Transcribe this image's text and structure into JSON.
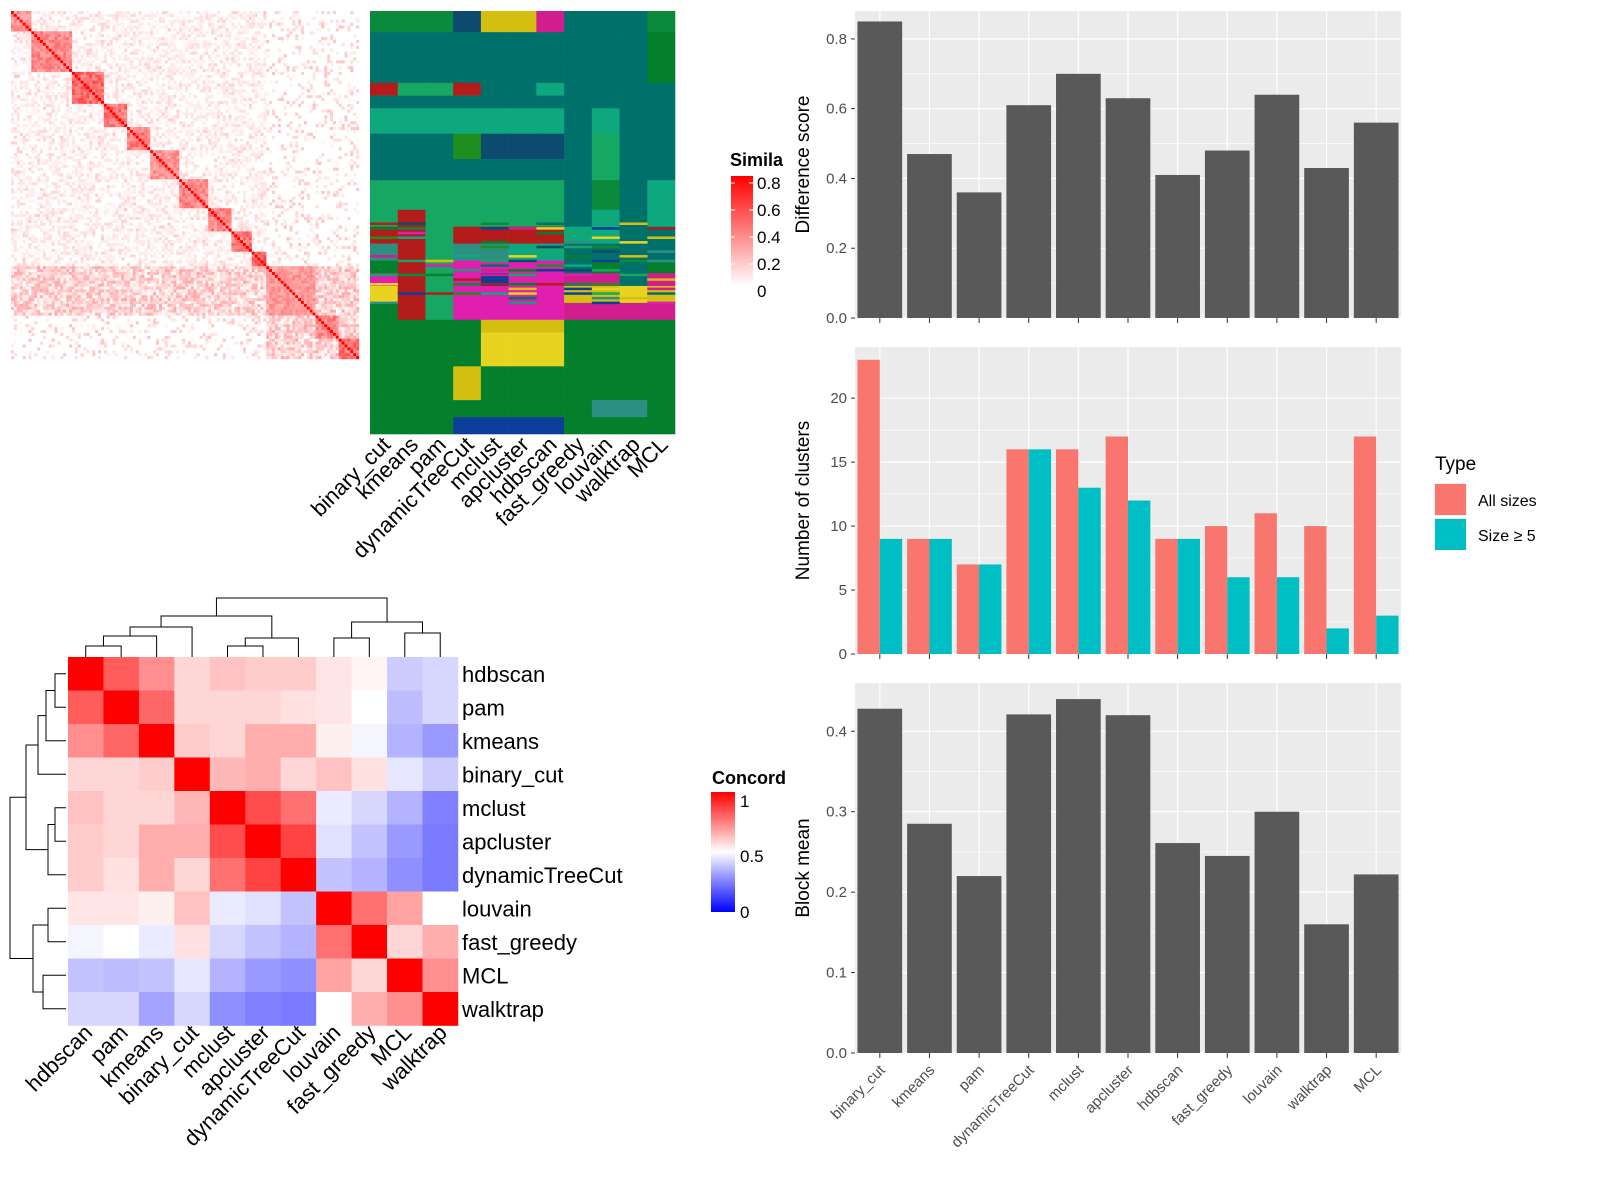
{
  "chart_data": [
    {
      "type": "heatmap",
      "id": "similarity",
      "legend_title": "Simila",
      "legend_ticks": [
        "0.8",
        "0.6",
        "0.4",
        "0.2",
        "0"
      ],
      "color_low": "#ffffff",
      "color_high": "#ff0000",
      "blocks": [
        {
          "start": 0.0,
          "end": 0.055,
          "v": 0.55
        },
        {
          "start": 0.055,
          "end": 0.17,
          "v": 0.6
        },
        {
          "start": 0.17,
          "end": 0.26,
          "v": 0.75
        },
        {
          "start": 0.26,
          "end": 0.33,
          "v": 0.7
        },
        {
          "start": 0.33,
          "end": 0.4,
          "v": 0.65
        },
        {
          "start": 0.4,
          "end": 0.48,
          "v": 0.55
        },
        {
          "start": 0.48,
          "end": 0.56,
          "v": 0.6
        },
        {
          "start": 0.56,
          "end": 0.63,
          "v": 0.6
        },
        {
          "start": 0.63,
          "end": 0.69,
          "v": 0.7
        },
        {
          "start": 0.69,
          "end": 0.73,
          "v": 0.8
        },
        {
          "start": 0.73,
          "end": 0.87,
          "v": 0.5
        },
        {
          "start": 0.87,
          "end": 0.94,
          "v": 0.6
        },
        {
          "start": 0.94,
          "end": 1.0,
          "v": 0.7
        }
      ]
    },
    {
      "type": "heatmap",
      "id": "cluster-assignments",
      "columns": [
        "binary_cut",
        "kmeans",
        "pam",
        "dynamicTreeCut",
        "mclust",
        "apcluster",
        "hdbscan",
        "fast_greedy",
        "louvain",
        "walktrap",
        "MCL"
      ],
      "palette": [
        "#00706A",
        "#0EA87E",
        "#16A862",
        "#0A8A3A",
        "#047F2C",
        "#1E8F1E",
        "#D4BF10",
        "#E8D320",
        "#D11D8E",
        "#E01EB0",
        "#B41C1C",
        "#0C4A6E",
        "#0C3F9A",
        "#2C8F82"
      ]
    },
    {
      "type": "heatmap",
      "id": "concordance",
      "legend_title": "Concord",
      "legend_ticks": [
        "1",
        "0.5",
        "0"
      ],
      "color_low": "#0000ff",
      "color_mid": "#ffffff",
      "color_high": "#ff0000",
      "rows": [
        "hdbscan",
        "pam",
        "kmeans",
        "binary_cut",
        "mclust",
        "apcluster",
        "dynamicTreeCut",
        "louvain",
        "fast_greedy",
        "MCL",
        "walktrap"
      ],
      "columns": [
        "hdbscan",
        "pam",
        "kmeans",
        "binary_cut",
        "mclust",
        "apcluster",
        "dynamicTreeCut",
        "louvain",
        "fast_greedy",
        "MCL",
        "walktrap"
      ],
      "values": [
        [
          1.0,
          0.82,
          0.72,
          0.58,
          0.62,
          0.6,
          0.6,
          0.55,
          0.52,
          0.4,
          0.42
        ],
        [
          0.82,
          1.0,
          0.8,
          0.58,
          0.58,
          0.58,
          0.56,
          0.55,
          0.5,
          0.37,
          0.42
        ],
        [
          0.72,
          0.8,
          1.0,
          0.6,
          0.58,
          0.66,
          0.66,
          0.53,
          0.48,
          0.35,
          0.3
        ],
        [
          0.58,
          0.58,
          0.6,
          1.0,
          0.64,
          0.66,
          0.58,
          0.62,
          0.56,
          0.45,
          0.4
        ],
        [
          0.62,
          0.58,
          0.58,
          0.64,
          1.0,
          0.85,
          0.78,
          0.46,
          0.42,
          0.35,
          0.25
        ],
        [
          0.6,
          0.58,
          0.66,
          0.66,
          0.85,
          1.0,
          0.87,
          0.44,
          0.38,
          0.3,
          0.24
        ],
        [
          0.6,
          0.56,
          0.66,
          0.58,
          0.78,
          0.87,
          1.0,
          0.38,
          0.35,
          0.28,
          0.24
        ],
        [
          0.55,
          0.55,
          0.53,
          0.62,
          0.46,
          0.44,
          0.38,
          1.0,
          0.78,
          0.68,
          0.5
        ],
        [
          0.48,
          0.5,
          0.46,
          0.56,
          0.42,
          0.38,
          0.35,
          0.78,
          1.0,
          0.58,
          0.66
        ],
        [
          0.38,
          0.37,
          0.38,
          0.45,
          0.35,
          0.3,
          0.28,
          0.68,
          0.58,
          1.0,
          0.72
        ],
        [
          0.42,
          0.42,
          0.32,
          0.42,
          0.28,
          0.25,
          0.24,
          0.5,
          0.66,
          0.72,
          1.0
        ]
      ],
      "row_dendrogram_order": [
        "hdbscan",
        "pam",
        "kmeans",
        "binary_cut",
        "mclust",
        "apcluster",
        "dynamicTreeCut",
        "louvain",
        "fast_greedy",
        "MCL",
        "walktrap"
      ]
    },
    {
      "type": "bar",
      "id": "difference-score",
      "categories": [
        "binary_cut",
        "kmeans",
        "pam",
        "dynamicTreeCut",
        "mclust",
        "apcluster",
        "hdbscan",
        "fast_greedy",
        "louvain",
        "walktrap",
        "MCL"
      ],
      "values": [
        0.85,
        0.47,
        0.36,
        0.61,
        0.7,
        0.63,
        0.41,
        0.48,
        0.64,
        0.43,
        0.56
      ],
      "ylabel": "Difference score",
      "ylim": [
        0,
        0.88
      ],
      "yticks": [
        "0.0",
        "0.2",
        "0.4",
        "0.6",
        "0.8"
      ],
      "bar_color": "#595959",
      "panel_bg": "#ebebeb",
      "grid": true
    },
    {
      "type": "bar",
      "id": "number-of-clusters",
      "categories": [
        "binary_cut",
        "kmeans",
        "pam",
        "dynamicTreeCut",
        "mclust",
        "apcluster",
        "hdbscan",
        "fast_greedy",
        "louvain",
        "walktrap",
        "MCL"
      ],
      "series": [
        {
          "name": "All sizes",
          "color": "#F8766D",
          "values": [
            23,
            9,
            7,
            16,
            16,
            17,
            9,
            10,
            11,
            10,
            17
          ]
        },
        {
          "name": "Size ≥ 5",
          "color": "#00BFC4",
          "values": [
            9,
            9,
            7,
            16,
            13,
            12,
            9,
            6,
            6,
            2,
            3
          ]
        }
      ],
      "ylabel": "Number of clusters",
      "ylim": [
        0,
        24
      ],
      "yticks": [
        "0",
        "5",
        "10",
        "15",
        "20"
      ],
      "legend_title": "Type",
      "legend_position": "right",
      "panel_bg": "#ebebeb",
      "grid": true
    },
    {
      "type": "bar",
      "id": "block-mean",
      "categories": [
        "binary_cut",
        "kmeans",
        "pam",
        "dynamicTreeCut",
        "mclust",
        "apcluster",
        "hdbscan",
        "fast_greedy",
        "louvain",
        "walktrap",
        "MCL"
      ],
      "values": [
        0.428,
        0.285,
        0.22,
        0.421,
        0.44,
        0.42,
        0.261,
        0.245,
        0.3,
        0.16,
        0.222
      ],
      "ylabel": "Block mean",
      "ylim": [
        0,
        0.46
      ],
      "yticks": [
        "0.0",
        "0.1",
        "0.2",
        "0.3",
        "0.4"
      ],
      "bar_color": "#595959",
      "panel_bg": "#ebebeb",
      "grid": true
    }
  ]
}
